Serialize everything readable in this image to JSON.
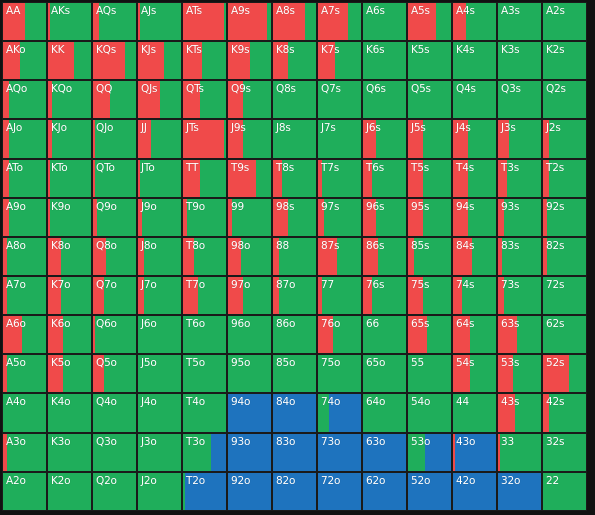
{
  "colors": {
    "raise": "#f04a4a",
    "call": "#1fae5b",
    "fold": "#1e73be"
  },
  "hands": [
    [
      "AA",
      "AKs",
      "AQs",
      "AJs",
      "ATs",
      "A9s",
      "A8s",
      "A7s",
      "A6s",
      "A5s",
      "A4s",
      "A3s",
      "A2s"
    ],
    [
      "AKo",
      "KK",
      "KQs",
      "KJs",
      "KTs",
      "K9s",
      "K8s",
      "K7s",
      "K6s",
      "K5s",
      "K4s",
      "K3s",
      "K2s"
    ],
    [
      "AQo",
      "KQo",
      "QQ",
      "QJs",
      "QTs",
      "Q9s",
      "Q8s",
      "Q7s",
      "Q6s",
      "Q5s",
      "Q4s",
      "Q3s",
      "Q2s"
    ],
    [
      "AJo",
      "KJo",
      "QJo",
      "JJ",
      "JTs",
      "J9s",
      "J8s",
      "J7s",
      "J6s",
      "J5s",
      "J4s",
      "J3s",
      "J2s"
    ],
    [
      "ATo",
      "KTo",
      "QTo",
      "JTo",
      "TT",
      "T9s",
      "T8s",
      "T7s",
      "T6s",
      "T5s",
      "T4s",
      "T3s",
      "T2s"
    ],
    [
      "A9o",
      "K9o",
      "Q9o",
      "J9o",
      "T9o",
      "99",
      "98s",
      "97s",
      "96s",
      "95s",
      "94s",
      "93s",
      "92s"
    ],
    [
      "A8o",
      "K8o",
      "Q8o",
      "J8o",
      "T8o",
      "98o",
      "88",
      "87s",
      "86s",
      "85s",
      "84s",
      "83s",
      "82s"
    ],
    [
      "A7o",
      "K7o",
      "Q7o",
      "J7o",
      "T7o",
      "97o",
      "87o",
      "77",
      "76s",
      "75s",
      "74s",
      "73s",
      "72s"
    ],
    [
      "A6o",
      "K6o",
      "Q6o",
      "J6o",
      "T6o",
      "96o",
      "86o",
      "76o",
      "66",
      "65s",
      "64s",
      "63s",
      "62s"
    ],
    [
      "A5o",
      "K5o",
      "Q5o",
      "J5o",
      "T5o",
      "95o",
      "85o",
      "75o",
      "65o",
      "55",
      "54s",
      "53s",
      "52s"
    ],
    [
      "A4o",
      "K4o",
      "Q4o",
      "J4o",
      "T4o",
      "94o",
      "84o",
      "74o",
      "64o",
      "54o",
      "44",
      "43s",
      "42s"
    ],
    [
      "A3o",
      "K3o",
      "Q3o",
      "J3o",
      "T3o",
      "93o",
      "83o",
      "73o",
      "63o",
      "53o",
      "43o",
      "33",
      "32s"
    ],
    [
      "A2o",
      "K2o",
      "Q2o",
      "J2o",
      "T2o",
      "92o",
      "82o",
      "72o",
      "62o",
      "52o",
      "42o",
      "32o",
      "22"
    ]
  ],
  "frequencies": {
    "raise": [
      [
        0.5,
        0.05,
        0.15,
        0.05,
        0.95,
        0.9,
        0.75,
        0.7,
        0,
        0.65,
        0.3,
        0,
        0
      ],
      [
        0.4,
        0.6,
        0.75,
        0.6,
        0.45,
        0.5,
        0.35,
        0.4,
        0,
        0,
        0,
        0,
        0
      ],
      [
        0.15,
        0.1,
        0.4,
        0.5,
        0.4,
        0.35,
        0,
        0,
        0,
        0,
        0,
        0,
        0
      ],
      [
        0.15,
        0.1,
        0.05,
        0.3,
        0.95,
        0.35,
        0,
        0,
        0.3,
        0.35,
        0.35,
        0.25,
        0.15
      ],
      [
        0.15,
        0.05,
        0.05,
        0.05,
        0.4,
        0.65,
        0.2,
        0.1,
        0.2,
        0.35,
        0.35,
        0.2,
        0.15
      ],
      [
        0.15,
        0.05,
        0.1,
        0.1,
        0.1,
        0.1,
        0.35,
        0.15,
        0.3,
        0.35,
        0.35,
        0.15,
        0.1
      ],
      [
        0.1,
        0.3,
        0.3,
        0.15,
        0.25,
        0.3,
        0.15,
        0.45,
        0.35,
        0.15,
        0.45,
        0.1,
        0.1
      ],
      [
        0.1,
        0.3,
        0.25,
        0.15,
        0.35,
        0.35,
        0.15,
        0.1,
        0.2,
        0.35,
        0.2,
        0.15,
        0
      ],
      [
        0.45,
        0.35,
        0.05,
        0,
        0,
        0,
        0,
        0.35,
        0,
        0.45,
        0.4,
        0.45,
        0
      ],
      [
        0.1,
        0.35,
        0.25,
        0,
        0,
        0,
        0,
        0,
        0,
        0,
        0.4,
        0.35,
        0.6
      ],
      [
        0,
        0,
        0,
        0,
        0,
        0,
        0,
        0,
        0,
        0,
        0,
        0.4,
        0.15
      ],
      [
        0.1,
        0,
        0,
        0,
        0,
        0,
        0,
        0,
        0,
        0,
        0.05,
        0.05,
        0
      ],
      [
        0,
        0,
        0,
        0,
        0,
        0,
        0,
        0,
        0,
        0,
        0,
        0,
        0
      ]
    ],
    "fold": [
      [
        0,
        0,
        0,
        0,
        0,
        0,
        0,
        0,
        0,
        0,
        0,
        0,
        0
      ],
      [
        0,
        0,
        0,
        0,
        0,
        0,
        0,
        0,
        0,
        0,
        0,
        0,
        0
      ],
      [
        0,
        0,
        0,
        0,
        0,
        0,
        0,
        0,
        0,
        0,
        0,
        0,
        0
      ],
      [
        0,
        0,
        0,
        0,
        0,
        0,
        0,
        0,
        0,
        0,
        0,
        0,
        0
      ],
      [
        0,
        0,
        0,
        0,
        0,
        0,
        0,
        0,
        0,
        0,
        0,
        0,
        0
      ],
      [
        0,
        0,
        0,
        0,
        0,
        0,
        0,
        0,
        0,
        0,
        0,
        0,
        0
      ],
      [
        0,
        0,
        0,
        0,
        0,
        0,
        0,
        0,
        0,
        0,
        0,
        0,
        0
      ],
      [
        0,
        0,
        0,
        0,
        0,
        0,
        0,
        0,
        0,
        0,
        0,
        0,
        0
      ],
      [
        0,
        0,
        0,
        0,
        0,
        0,
        0,
        0,
        0,
        0,
        0,
        0,
        0
      ],
      [
        0,
        0,
        0,
        0,
        0,
        0,
        0,
        0,
        0,
        0,
        0,
        0,
        0
      ],
      [
        0,
        0,
        0,
        0,
        0,
        1,
        1,
        0.75,
        0,
        0,
        0,
        0,
        0
      ],
      [
        0,
        0,
        0,
        0,
        0.35,
        1,
        1,
        1,
        1,
        0.6,
        1,
        0,
        0
      ],
      [
        0,
        0,
        0,
        0,
        0.95,
        1,
        1,
        1,
        1,
        1,
        1,
        1,
        0
      ]
    ]
  }
}
